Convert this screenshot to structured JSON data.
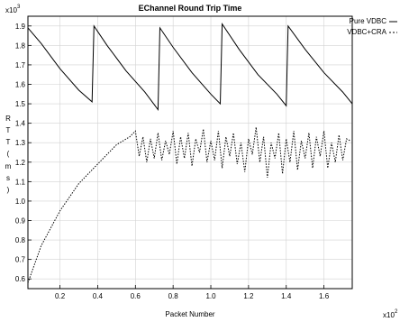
{
  "chart_data": {
    "type": "line",
    "title": "EChannel Round Trip Time",
    "xlabel": "Packet Number",
    "ylabel": "R T T ( m s )",
    "x_scale": "x10",
    "x_scale_exp": "2",
    "y_scale": "x10",
    "y_scale_exp": "3",
    "xlim": [
      0.03,
      1.75
    ],
    "ylim": [
      0.55,
      1.95
    ],
    "x_ticks": [
      "0.2",
      "0.4",
      "0.6",
      "0.8",
      "1.0",
      "1.2",
      "1.4",
      "1.6"
    ],
    "y_ticks": [
      "0.6",
      "0.7",
      "0.8",
      "0.9",
      "1.0",
      "1.1",
      "1.2",
      "1.3",
      "1.4",
      "1.5",
      "1.6",
      "1.7",
      "1.8",
      "1.9"
    ],
    "grid": true,
    "legend_position": "right, outside plot",
    "series": [
      {
        "name": "Pure VDBC",
        "style": "solid",
        "color": "#000000",
        "points": [
          [
            0.03,
            1.89
          ],
          [
            0.1,
            1.81
          ],
          [
            0.2,
            1.68
          ],
          [
            0.3,
            1.57
          ],
          [
            0.37,
            1.51
          ],
          [
            0.38,
            1.9
          ],
          [
            0.45,
            1.8
          ],
          [
            0.55,
            1.67
          ],
          [
            0.65,
            1.56
          ],
          [
            0.72,
            1.47
          ],
          [
            0.73,
            1.89
          ],
          [
            0.8,
            1.79
          ],
          [
            0.9,
            1.66
          ],
          [
            1.0,
            1.55
          ],
          [
            1.05,
            1.5
          ],
          [
            1.06,
            1.91
          ],
          [
            1.15,
            1.78
          ],
          [
            1.25,
            1.65
          ],
          [
            1.35,
            1.55
          ],
          [
            1.4,
            1.49
          ],
          [
            1.41,
            1.9
          ],
          [
            1.5,
            1.78
          ],
          [
            1.6,
            1.66
          ],
          [
            1.7,
            1.56
          ],
          [
            1.75,
            1.5
          ]
        ]
      },
      {
        "name": "VDBC+CRA",
        "style": "dotted",
        "color": "#000000",
        "points": [
          [
            0.03,
            0.58
          ],
          [
            0.1,
            0.77
          ],
          [
            0.2,
            0.95
          ],
          [
            0.3,
            1.09
          ],
          [
            0.4,
            1.19
          ],
          [
            0.5,
            1.29
          ],
          [
            0.57,
            1.33
          ],
          [
            0.6,
            1.36
          ],
          [
            0.62,
            1.23
          ],
          [
            0.64,
            1.33
          ],
          [
            0.66,
            1.2
          ],
          [
            0.68,
            1.32
          ],
          [
            0.7,
            1.22
          ],
          [
            0.72,
            1.35
          ],
          [
            0.74,
            1.21
          ],
          [
            0.76,
            1.31
          ],
          [
            0.78,
            1.24
          ],
          [
            0.8,
            1.36
          ],
          [
            0.82,
            1.19
          ],
          [
            0.84,
            1.33
          ],
          [
            0.86,
            1.22
          ],
          [
            0.88,
            1.35
          ],
          [
            0.9,
            1.18
          ],
          [
            0.92,
            1.32
          ],
          [
            0.94,
            1.25
          ],
          [
            0.96,
            1.37
          ],
          [
            0.98,
            1.2
          ],
          [
            1.0,
            1.31
          ],
          [
            1.02,
            1.21
          ],
          [
            1.04,
            1.36
          ],
          [
            1.06,
            1.17
          ],
          [
            1.08,
            1.33
          ],
          [
            1.1,
            1.23
          ],
          [
            1.12,
            1.35
          ],
          [
            1.14,
            1.19
          ],
          [
            1.16,
            1.3
          ],
          [
            1.18,
            1.15
          ],
          [
            1.2,
            1.32
          ],
          [
            1.22,
            1.24
          ],
          [
            1.24,
            1.38
          ],
          [
            1.26,
            1.2
          ],
          [
            1.28,
            1.33
          ],
          [
            1.3,
            1.12
          ],
          [
            1.32,
            1.3
          ],
          [
            1.34,
            1.22
          ],
          [
            1.36,
            1.35
          ],
          [
            1.38,
            1.14
          ],
          [
            1.4,
            1.32
          ],
          [
            1.42,
            1.2
          ],
          [
            1.44,
            1.36
          ],
          [
            1.46,
            1.16
          ],
          [
            1.48,
            1.31
          ],
          [
            1.5,
            1.22
          ],
          [
            1.52,
            1.35
          ],
          [
            1.54,
            1.17
          ],
          [
            1.56,
            1.33
          ],
          [
            1.58,
            1.23
          ],
          [
            1.6,
            1.36
          ],
          [
            1.62,
            1.17
          ],
          [
            1.64,
            1.3
          ],
          [
            1.66,
            1.2
          ],
          [
            1.68,
            1.34
          ],
          [
            1.7,
            1.21
          ],
          [
            1.72,
            1.32
          ],
          [
            1.74,
            1.31
          ]
        ]
      }
    ]
  }
}
